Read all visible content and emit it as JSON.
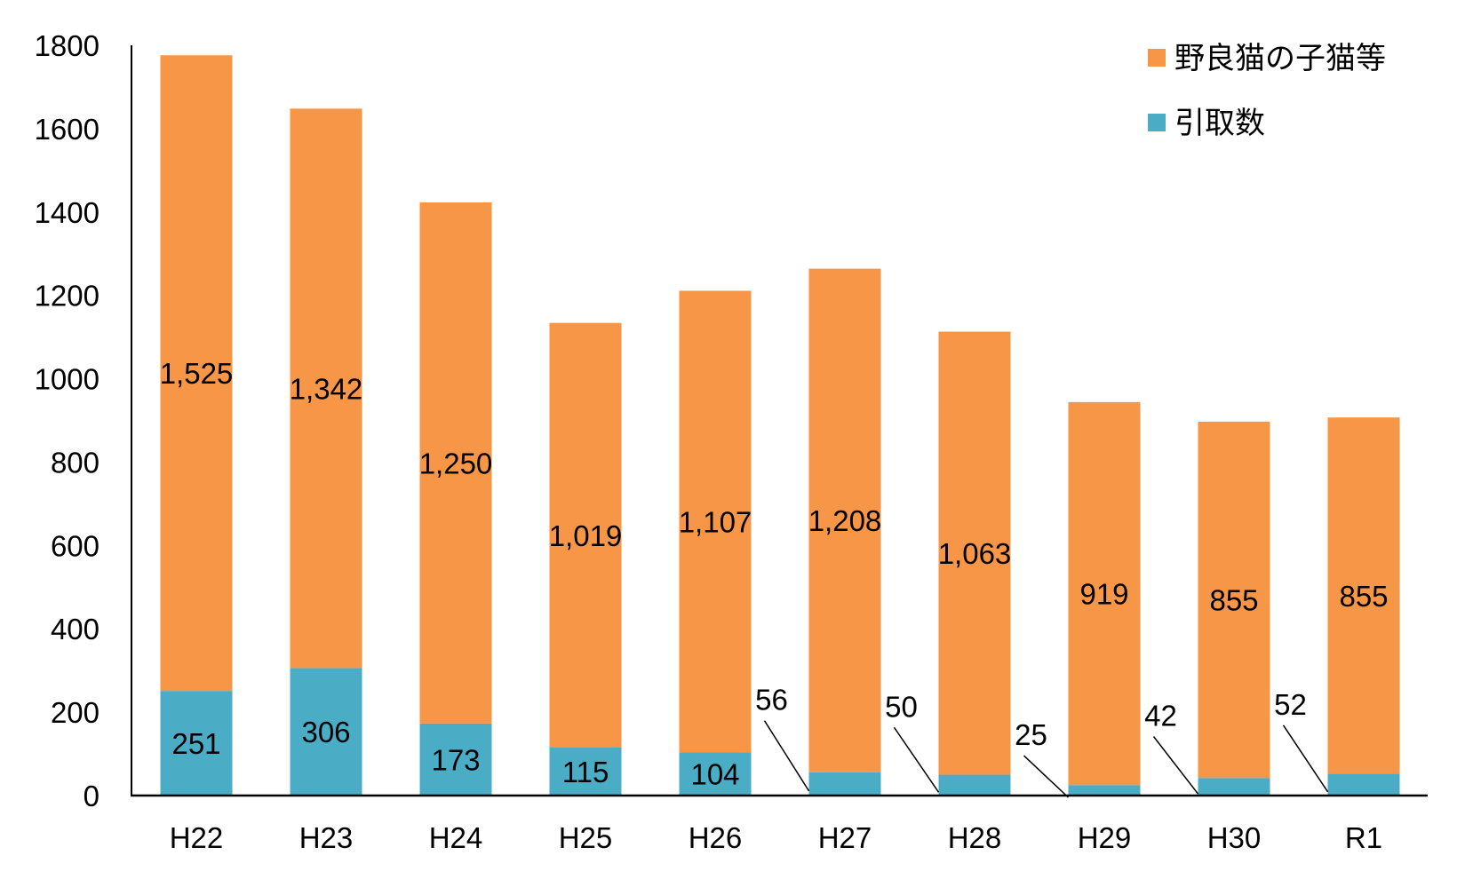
{
  "chart_data": {
    "type": "bar",
    "stacked": true,
    "title": "",
    "xlabel": "",
    "ylabel": "",
    "categories": [
      "H22",
      "H23",
      "H24",
      "H25",
      "H26",
      "H27",
      "H28",
      "H29",
      "H30",
      "R1"
    ],
    "series": [
      {
        "name": "引取数",
        "color": "#4BACC6",
        "values": [
          251,
          306,
          173,
          115,
          104,
          56,
          50,
          25,
          42,
          52
        ],
        "labels": [
          "251",
          "306",
          "173",
          "115",
          "104",
          "56",
          "50",
          "25",
          "42",
          "52"
        ]
      },
      {
        "name": "野良猫の子猫等",
        "color": "#F79646",
        "values": [
          1525,
          1342,
          1250,
          1019,
          1107,
          1208,
          1063,
          919,
          855,
          855
        ],
        "labels": [
          "1,525",
          "1,342",
          "1,250",
          "1,019",
          "1,107",
          "1,208",
          "1,063",
          "919",
          "855",
          "855"
        ]
      }
    ],
    "ylim": [
      0,
      1800
    ],
    "yticks": [
      0,
      200,
      400,
      600,
      800,
      1000,
      1200,
      1400,
      1600,
      1800
    ],
    "grid": false,
    "legend": "top-right"
  }
}
